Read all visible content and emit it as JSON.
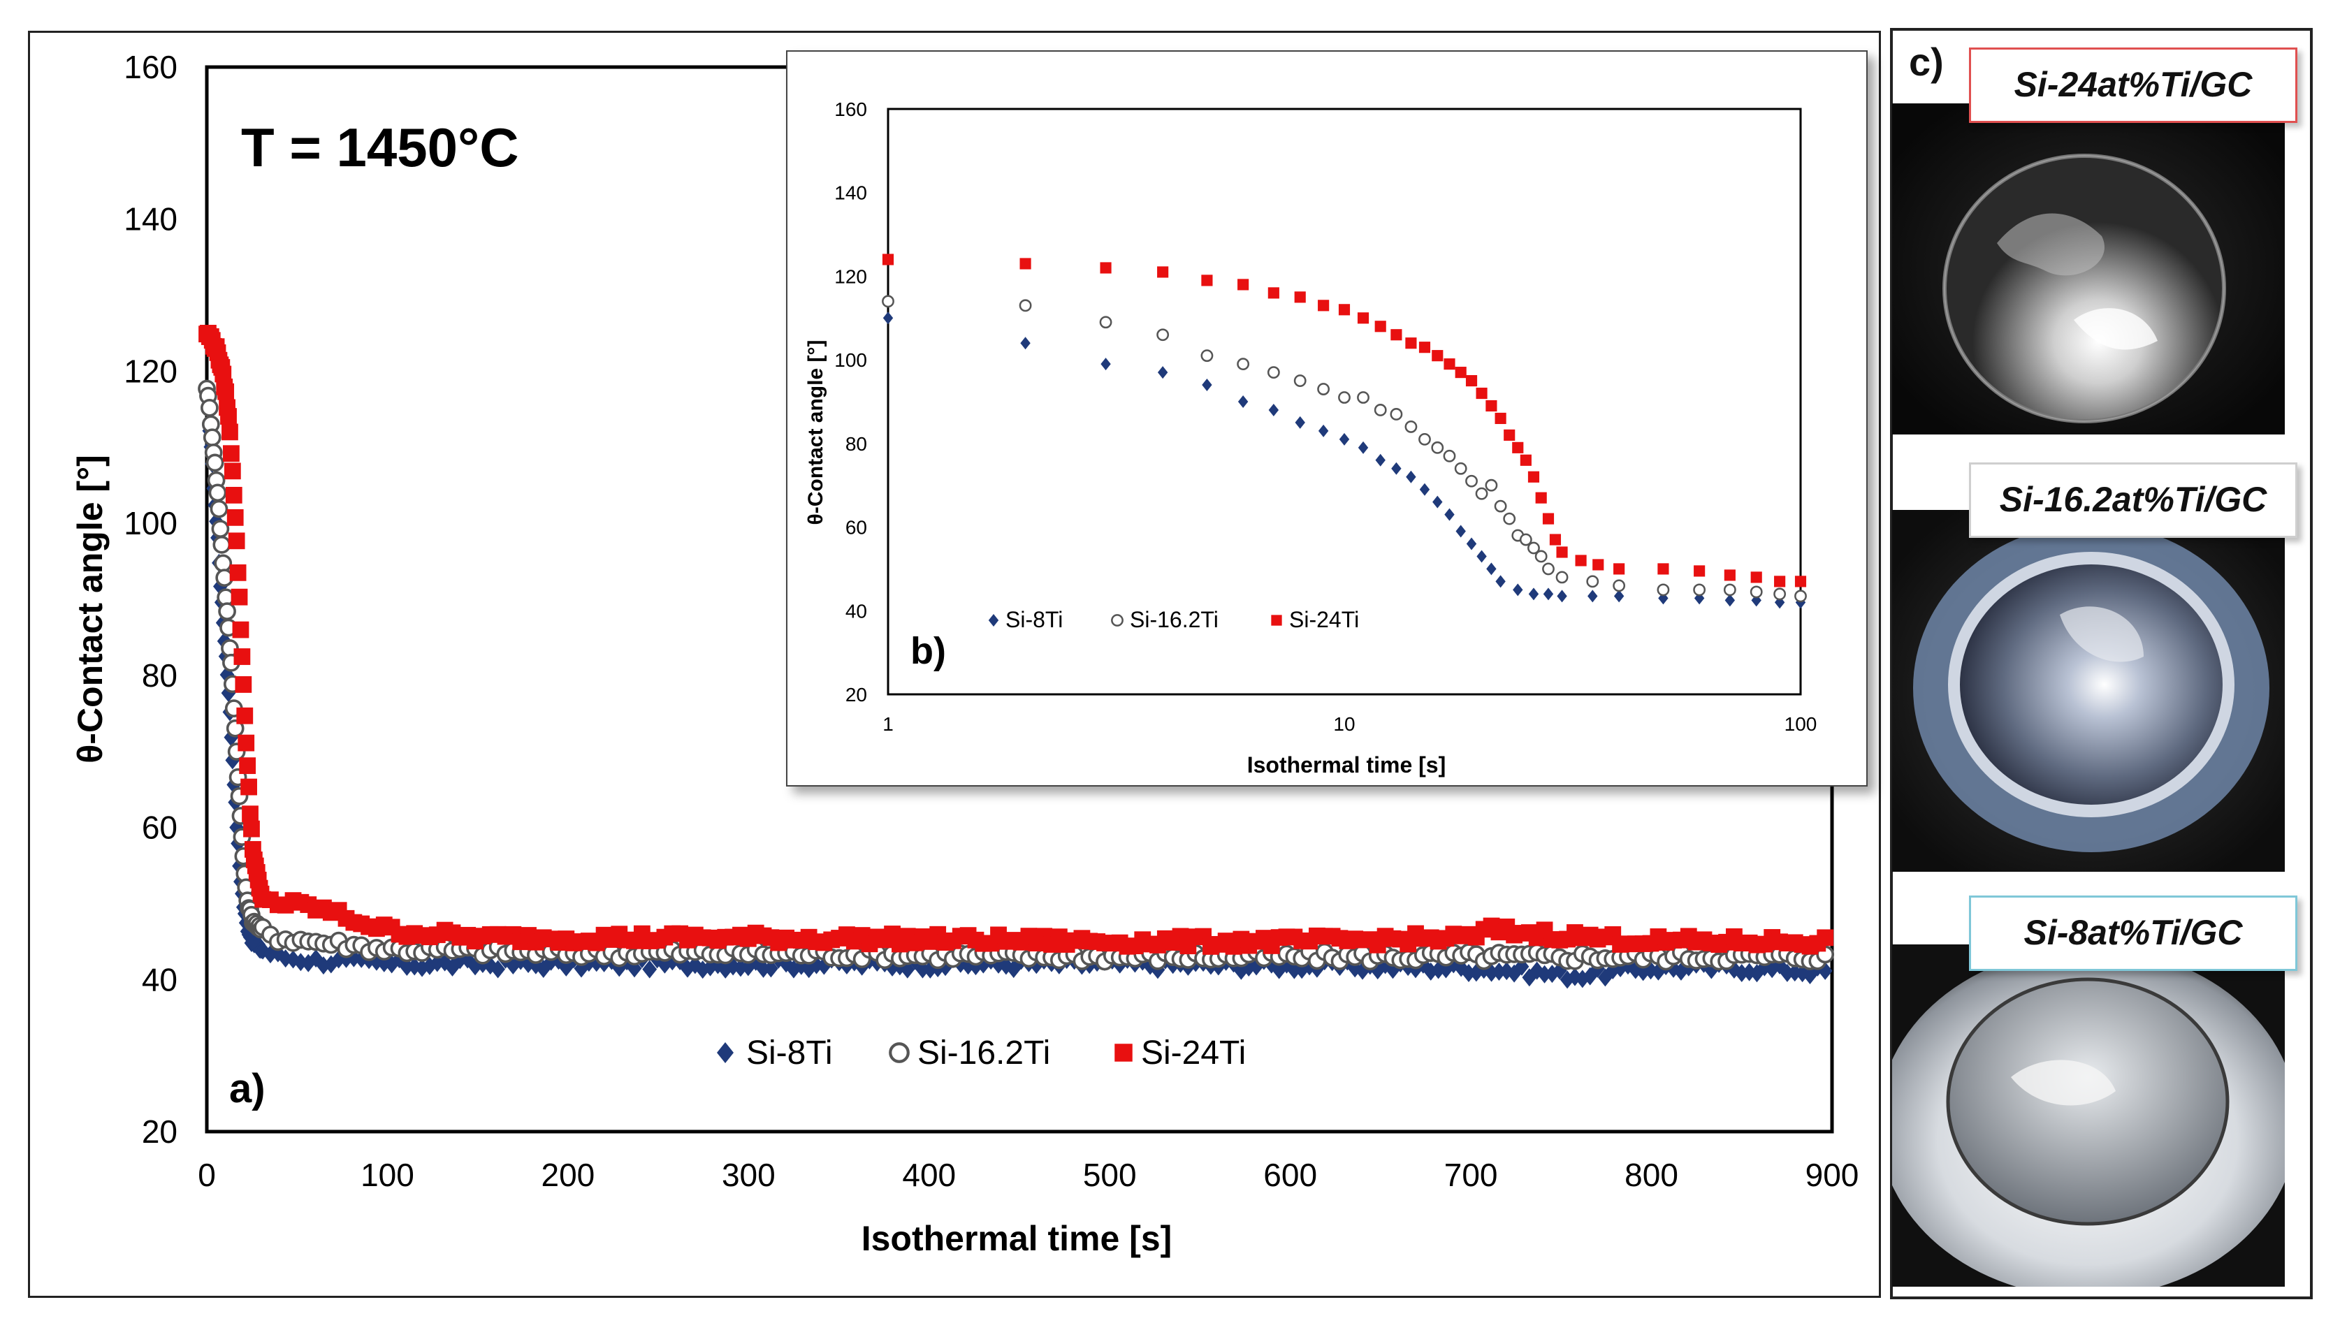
{
  "chart_data": [
    {
      "panel": "a)",
      "type": "scatter",
      "title": "T = 1450°C",
      "xlabel": "Isothermal time [s]",
      "ylabel": "θ-Contact angle [°]",
      "xlim": [
        0,
        900
      ],
      "ylim": [
        20,
        160
      ],
      "xticks": [
        "0",
        "100",
        "200",
        "300",
        "400",
        "500",
        "600",
        "700",
        "800",
        "900"
      ],
      "yticks": [
        "20",
        "40",
        "60",
        "80",
        "100",
        "120",
        "140",
        "160"
      ],
      "legend_position": "bottom-center",
      "series": [
        {
          "name": "Si-8Ti",
          "marker": "diamond",
          "color": "#1f3a7a",
          "points": [
            [
              0,
              117
            ],
            [
              2,
              111
            ],
            [
              4,
              104
            ],
            [
              6,
              98
            ],
            [
              8,
              90
            ],
            [
              10,
              84
            ],
            [
              12,
              78
            ],
            [
              14,
              70
            ],
            [
              16,
              62
            ],
            [
              18,
              55
            ],
            [
              20,
              50
            ],
            [
              22,
              47
            ],
            [
              25,
              45
            ],
            [
              30,
              44
            ],
            [
              40,
              43
            ],
            [
              60,
              42.5
            ],
            [
              100,
              42
            ],
            [
              200,
              42
            ],
            [
              300,
              42
            ],
            [
              400,
              42
            ],
            [
              500,
              42
            ],
            [
              600,
              41.8
            ],
            [
              700,
              41.5
            ],
            [
              760,
              40.5
            ],
            [
              800,
              41.5
            ],
            [
              850,
              41.5
            ],
            [
              900,
              41
            ]
          ]
        },
        {
          "name": "Si-16.2Ti",
          "marker": "circle-open",
          "color": "#555555",
          "points": [
            [
              0,
              118
            ],
            [
              2,
              114
            ],
            [
              4,
              109
            ],
            [
              6,
              104
            ],
            [
              8,
              98
            ],
            [
              10,
              92
            ],
            [
              12,
              86
            ],
            [
              14,
              80
            ],
            [
              16,
              72
            ],
            [
              18,
              64
            ],
            [
              20,
              57
            ],
            [
              22,
              51
            ],
            [
              25,
              48
            ],
            [
              30,
              46.5
            ],
            [
              40,
              45.5
            ],
            [
              60,
              45
            ],
            [
              100,
              44
            ],
            [
              200,
              43.5
            ],
            [
              300,
              43.5
            ],
            [
              400,
              43.2
            ],
            [
              500,
              43
            ],
            [
              600,
              43
            ],
            [
              700,
              43
            ],
            [
              800,
              43
            ],
            [
              900,
              43
            ]
          ]
        },
        {
          "name": "Si-24Ti",
          "marker": "square",
          "color": "#e81010",
          "points": [
            [
              0,
              125
            ],
            [
              2,
              124.5
            ],
            [
              4,
              123.5
            ],
            [
              6,
              122.5
            ],
            [
              8,
              120.5
            ],
            [
              10,
              118
            ],
            [
              12,
              114
            ],
            [
              14,
              108
            ],
            [
              16,
              100
            ],
            [
              18,
              90
            ],
            [
              20,
              80
            ],
            [
              22,
              70
            ],
            [
              24,
              62
            ],
            [
              26,
              56
            ],
            [
              30,
              51
            ],
            [
              40,
              50
            ],
            [
              60,
              49.5
            ],
            [
              80,
              48
            ],
            [
              100,
              46.5
            ],
            [
              150,
              45.5
            ],
            [
              200,
              45.5
            ],
            [
              300,
              45.5
            ],
            [
              400,
              45.3
            ],
            [
              500,
              45
            ],
            [
              600,
              45
            ],
            [
              700,
              45.5
            ],
            [
              710,
              46.5
            ],
            [
              800,
              45
            ],
            [
              900,
              45
            ]
          ]
        }
      ]
    },
    {
      "panel": "b)",
      "type": "scatter",
      "xscale": "log",
      "xlabel": "Isothermal time [s]",
      "ylabel": "θ-Contact angle [°]",
      "xlim": [
        1,
        100
      ],
      "ylim": [
        20,
        160
      ],
      "xticks": [
        "1",
        "10",
        "100"
      ],
      "yticks": [
        "20",
        "40",
        "60",
        "80",
        "100",
        "120",
        "140",
        "160"
      ],
      "legend_position": "bottom-left",
      "series": [
        {
          "name": "Si-8Ti",
          "marker": "diamond",
          "color": "#1f3a7a",
          "points": [
            [
              1,
              110
            ],
            [
              2,
              104
            ],
            [
              3,
              99
            ],
            [
              4,
              97
            ],
            [
              5,
              94
            ],
            [
              6,
              90
            ],
            [
              7,
              88
            ],
            [
              8,
              85
            ],
            [
              9,
              83
            ],
            [
              10,
              81
            ],
            [
              11,
              79
            ],
            [
              12,
              76
            ],
            [
              13,
              74
            ],
            [
              14,
              72
            ],
            [
              15,
              69
            ],
            [
              16,
              66
            ],
            [
              17,
              63
            ],
            [
              18,
              59
            ],
            [
              19,
              56
            ],
            [
              20,
              53
            ],
            [
              21,
              50
            ],
            [
              22,
              47
            ],
            [
              24,
              45
            ],
            [
              26,
              44
            ],
            [
              28,
              44
            ],
            [
              30,
              43.5
            ],
            [
              35,
              43.5
            ],
            [
              40,
              43.5
            ],
            [
              50,
              43
            ],
            [
              60,
              43
            ],
            [
              70,
              42.5
            ],
            [
              80,
              42.5
            ],
            [
              90,
              42
            ],
            [
              100,
              42
            ]
          ]
        },
        {
          "name": "Si-16.2Ti",
          "marker": "circle-open",
          "color": "#555555",
          "points": [
            [
              1,
              114
            ],
            [
              2,
              113
            ],
            [
              3,
              109
            ],
            [
              4,
              106
            ],
            [
              5,
              101
            ],
            [
              6,
              99
            ],
            [
              7,
              97
            ],
            [
              8,
              95
            ],
            [
              9,
              93
            ],
            [
              10,
              91
            ],
            [
              11,
              91
            ],
            [
              12,
              88
            ],
            [
              13,
              87
            ],
            [
              14,
              84
            ],
            [
              15,
              81
            ],
            [
              16,
              79
            ],
            [
              17,
              77
            ],
            [
              18,
              74
            ],
            [
              19,
              71
            ],
            [
              20,
              68
            ],
            [
              21,
              70
            ],
            [
              22,
              65
            ],
            [
              23,
              62
            ],
            [
              24,
              58
            ],
            [
              25,
              57
            ],
            [
              26,
              55
            ],
            [
              27,
              53
            ],
            [
              28,
              50
            ],
            [
              30,
              48
            ],
            [
              35,
              47
            ],
            [
              40,
              46
            ],
            [
              50,
              45
            ],
            [
              60,
              45
            ],
            [
              70,
              45
            ],
            [
              80,
              44.5
            ],
            [
              90,
              44
            ],
            [
              100,
              43.5
            ]
          ]
        },
        {
          "name": "Si-24Ti",
          "marker": "square",
          "color": "#e81010",
          "points": [
            [
              1,
              124
            ],
            [
              2,
              123
            ],
            [
              3,
              122
            ],
            [
              4,
              121
            ],
            [
              5,
              119
            ],
            [
              6,
              118
            ],
            [
              7,
              116
            ],
            [
              8,
              115
            ],
            [
              9,
              113
            ],
            [
              10,
              112
            ],
            [
              11,
              110
            ],
            [
              12,
              108
            ],
            [
              13,
              106
            ],
            [
              14,
              104
            ],
            [
              15,
              103
            ],
            [
              16,
              101
            ],
            [
              17,
              99
            ],
            [
              18,
              97
            ],
            [
              19,
              95
            ],
            [
              20,
              92
            ],
            [
              21,
              89
            ],
            [
              22,
              86
            ],
            [
              23,
              82
            ],
            [
              24,
              79
            ],
            [
              25,
              76
            ],
            [
              26,
              72
            ],
            [
              27,
              67
            ],
            [
              28,
              62
            ],
            [
              29,
              57
            ],
            [
              30,
              54
            ],
            [
              33,
              52
            ],
            [
              36,
              51
            ],
            [
              40,
              50
            ],
            [
              50,
              50
            ],
            [
              60,
              49.5
            ],
            [
              70,
              48.5
            ],
            [
              80,
              48
            ],
            [
              90,
              47
            ],
            [
              100,
              47
            ]
          ]
        }
      ]
    }
  ],
  "panel_c": {
    "letter": "c)",
    "photos": [
      {
        "label": "Si-24at%Ti/GC",
        "border": "#e05050"
      },
      {
        "label": "Si-16.2at%Ti/GC",
        "border": "#cfcfcf"
      },
      {
        "label": "Si-8at%Ti/GC",
        "border": "#7fc7d8"
      }
    ]
  }
}
